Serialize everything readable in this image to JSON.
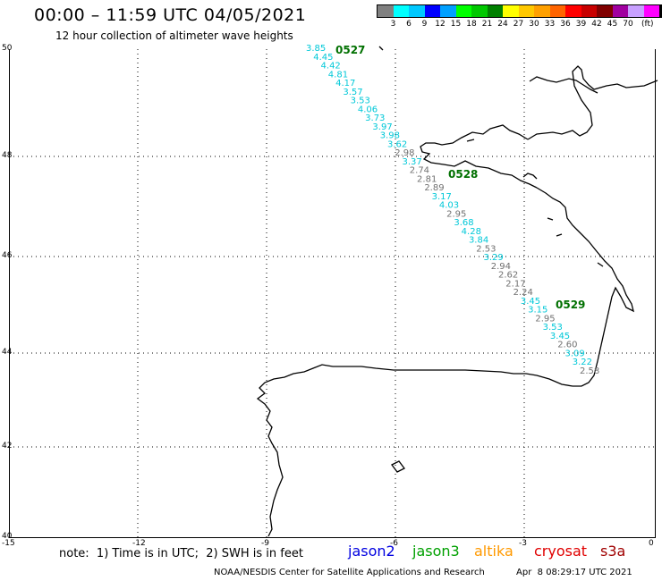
{
  "title": "00:00 – 11:59 UTC 04/05/2021",
  "subtitle": "12 hour collection of altimeter wave heights",
  "scale": {
    "colors": [
      "#808080",
      "#00ffff",
      "#00c8ff",
      "#0000ff",
      "#00a0ff",
      "#00ff00",
      "#00c800",
      "#008000",
      "#ffff00",
      "#ffc800",
      "#ffa000",
      "#ff6400",
      "#ff0000",
      "#c80000",
      "#800000",
      "#a000a0",
      "#c8a0ff",
      "#ff00ff",
      "#000000"
    ],
    "labels": [
      "3",
      "6",
      "9",
      "12",
      "15",
      "18",
      "21",
      "24",
      "27",
      "30",
      "33",
      "36",
      "39",
      "42",
      "45",
      "70"
    ],
    "unit": "(ft)"
  },
  "lat_labels": [
    "50",
    "48",
    "46",
    "44",
    "42",
    "40"
  ],
  "lon_labels": [
    "-15",
    "-12",
    "-9",
    "-6",
    "-3",
    "0"
  ],
  "passes": [
    {
      "label": "0527",
      "color": "#007000"
    },
    {
      "label": "0528",
      "color": "#007000"
    },
    {
      "label": "0529",
      "color": "#007000"
    }
  ],
  "swh": [
    {
      "v": "3.85",
      "c": "#00c8d8"
    },
    {
      "v": "4.45",
      "c": "#00c8d8"
    },
    {
      "v": "4.42",
      "c": "#00c8d8"
    },
    {
      "v": "4.81",
      "c": "#00c8d8"
    },
    {
      "v": "4.17",
      "c": "#00c8d8"
    },
    {
      "v": "3.57",
      "c": "#00c8d8"
    },
    {
      "v": "3.53",
      "c": "#00c8d8"
    },
    {
      "v": "4.06",
      "c": "#00c8d8"
    },
    {
      "v": "3.73",
      "c": "#00c8d8"
    },
    {
      "v": "3.97",
      "c": "#00c8d8"
    },
    {
      "v": "3.98",
      "c": "#00c8d8"
    },
    {
      "v": "3.62",
      "c": "#00c8d8"
    },
    {
      "v": "2.98",
      "c": "#707070"
    },
    {
      "v": "3.37",
      "c": "#00c8d8"
    },
    {
      "v": "2.74",
      "c": "#707070"
    },
    {
      "v": "2.81",
      "c": "#707070"
    },
    {
      "v": "2.89",
      "c": "#707070"
    },
    {
      "v": "3.17",
      "c": "#00c8d8"
    },
    {
      "v": "4.03",
      "c": "#00c8d8"
    },
    {
      "v": "2.95",
      "c": "#707070"
    },
    {
      "v": "3.68",
      "c": "#00c8d8"
    },
    {
      "v": "4.28",
      "c": "#00c8d8"
    },
    {
      "v": "3.84",
      "c": "#00c8d8"
    },
    {
      "v": "2.53",
      "c": "#707070"
    },
    {
      "v": "3.29",
      "c": "#00c8d8"
    },
    {
      "v": "2.94",
      "c": "#707070"
    },
    {
      "v": "2.62",
      "c": "#707070"
    },
    {
      "v": "2.17",
      "c": "#707070"
    },
    {
      "v": "2.24",
      "c": "#707070"
    },
    {
      "v": "3.45",
      "c": "#00c8d8"
    },
    {
      "v": "3.15",
      "c": "#00c8d8"
    },
    {
      "v": "2.95",
      "c": "#707070"
    },
    {
      "v": "3.53",
      "c": "#00c8d8"
    },
    {
      "v": "3.45",
      "c": "#00c8d8"
    },
    {
      "v": "2.60",
      "c": "#707070"
    },
    {
      "v": "3.09",
      "c": "#00c8d8"
    },
    {
      "v": "3.22",
      "c": "#00c8d8"
    },
    {
      "v": "2.58",
      "c": "#707070"
    }
  ],
  "note": "note:  1) Time is in UTC;  2) SWH is in feet",
  "satellites": [
    {
      "name": "jason2",
      "color": "#0000e0"
    },
    {
      "name": "jason3",
      "color": "#00a000"
    },
    {
      "name": "altika",
      "color": "#ff9900"
    },
    {
      "name": "cryosat",
      "color": "#e00000"
    },
    {
      "name": "s3a",
      "color": "#a00000"
    }
  ],
  "credit": "NOAA/NESDIS Center for Satellite Applications and Research",
  "credit_time": "Apr  8 08:29:17 UTC 2021"
}
